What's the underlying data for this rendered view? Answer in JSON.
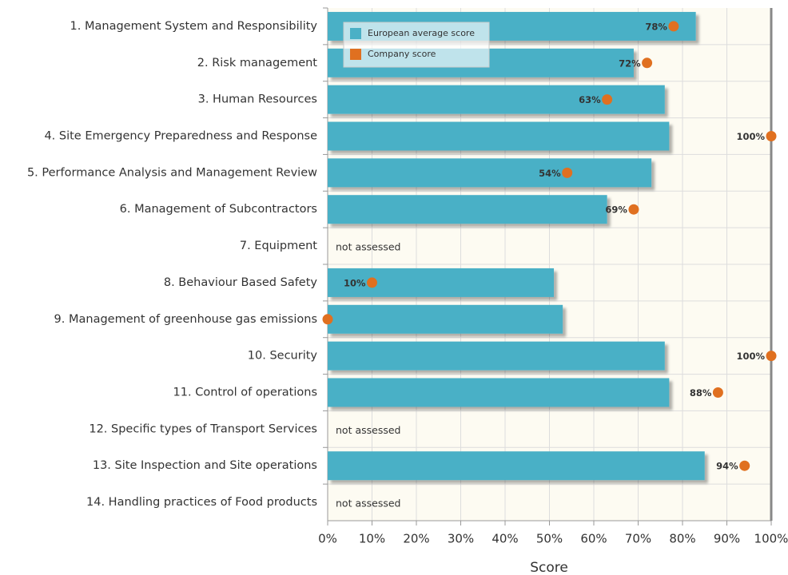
{
  "chart_data": {
    "type": "bar",
    "orientation": "horizontal",
    "categories": [
      "1. Management System and Responsibility",
      "2. Risk management",
      "3. Human Resources",
      "4. Site Emergency Preparedness and Response",
      "5. Performance Analysis and Management Review",
      "6. Management of Subcontractors",
      "7. Equipment",
      "8. Behaviour Based Safety",
      "9. Management of greenhouse gas emissions",
      "10. Security",
      "11. Control of operations",
      "12. Specific types of Transport Services",
      "13. Site Inspection and Site operations",
      "14. Handling practices of Food products"
    ],
    "series": [
      {
        "name": "European average score",
        "color": "#4ab0c6",
        "style": "bar",
        "values": [
          83,
          69,
          76,
          77,
          73,
          63,
          null,
          51,
          53,
          76,
          77,
          null,
          85,
          null
        ]
      },
      {
        "name": "Company score",
        "color": "#e07020",
        "style": "dot",
        "values": [
          78,
          72,
          63,
          100,
          54,
          69,
          null,
          10,
          0,
          100,
          88,
          null,
          94,
          null
        ],
        "value_labels": [
          "78%",
          "72%",
          "63%",
          "100%",
          "54%",
          "69%",
          null,
          "10%",
          null,
          "100%",
          "88%",
          null,
          "94%",
          null
        ]
      }
    ],
    "missing_label": "not assessed",
    "xlabel": "Score",
    "xlim": [
      0,
      100
    ],
    "xticks": [
      {
        "value": 0,
        "label": "0%"
      },
      {
        "value": 10,
        "label": "10%"
      },
      {
        "value": 20,
        "label": "20%"
      },
      {
        "value": 30,
        "label": "30%"
      },
      {
        "value": 40,
        "label": "40%"
      },
      {
        "value": 50,
        "label": "50%"
      },
      {
        "value": 60,
        "label": "60%"
      },
      {
        "value": 70,
        "label": "70%"
      },
      {
        "value": 80,
        "label": "80%"
      },
      {
        "value": 90,
        "label": "90%"
      },
      {
        "value": 100,
        "label": "100%"
      }
    ],
    "grid": true,
    "legend": "upper left"
  }
}
